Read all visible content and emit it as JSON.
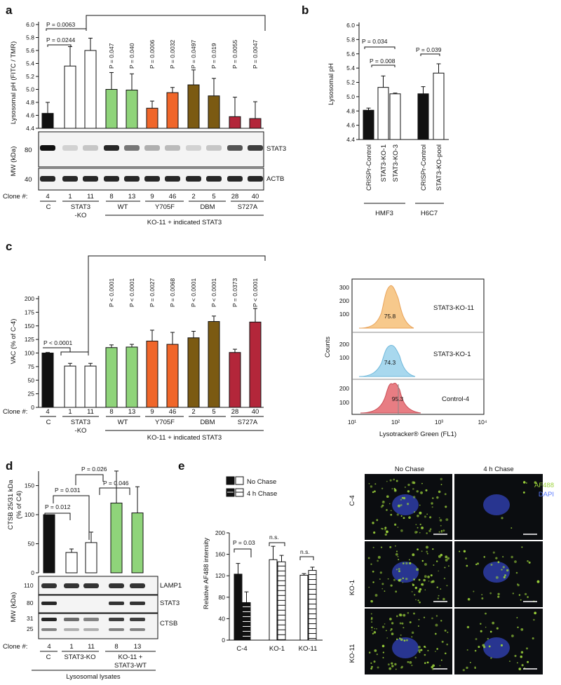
{
  "colors": {
    "black": "#111111",
    "white": "#ffffff",
    "green": "#8fd47a",
    "orange": "#f0662a",
    "brown": "#7b5a12",
    "red": "#b3263a",
    "blue": "#3c4fb4",
    "af488": "#9bd23a",
    "hist_orange": "#f7c98c",
    "hist_blue": "#a8d8ee",
    "hist_red": "#e87d83"
  },
  "panel_labels": {
    "a": "a",
    "b": "b",
    "c": "c",
    "d": "d",
    "e": "e"
  },
  "clone_label": "Clone #:",
  "panel_a": {
    "ylabel": "Lysosomal pH (FITC / TMR)",
    "yticks": [
      "6.0",
      "5.8",
      "5.6",
      "5.4",
      "5.2",
      "5.0",
      "4.8",
      "4.6",
      "4.4"
    ],
    "mw_label": "MW (kDa)",
    "mw_markers": [
      "80",
      "40"
    ],
    "blot_labels": [
      "STAT3",
      "ACTB"
    ],
    "clones": [
      "4",
      "1",
      "11",
      "8",
      "13",
      "9",
      "46",
      "2",
      "5",
      "28",
      "40"
    ],
    "groups": [
      "C",
      "STAT3\n-KO",
      "WT",
      "Y705F",
      "DBM",
      "S727A"
    ],
    "group_c": "C",
    "group_ko_1": "STAT3",
    "group_ko_2": "-KO",
    "group_wt": "WT",
    "group_y705f": "Y705F",
    "group_dbm": "DBM",
    "group_s727a": "S727A",
    "footer": "KO-11 + indicated STAT3",
    "p_top": "P = 0.0063",
    "p_inner": "P = 0.0244",
    "p_values": [
      "P = 0.047",
      "P = 0.040",
      "P = 0.0006",
      "P = 0.0032",
      "P = 0.0497",
      "P = 0.019",
      "P = 0.0055",
      "P = 0.0047"
    ]
  },
  "panel_b": {
    "ylabel": "Lysosomal pH",
    "yticks": [
      "6.0",
      "5.8",
      "5.6",
      "5.4",
      "5.2",
      "5.0",
      "4.8",
      "4.6",
      "4.4"
    ],
    "categories": [
      "CRISPr-Control",
      "STAT3-KO-1",
      "STAT3-KO-3",
      "CRISPr-Control",
      "STAT3-KO-pool"
    ],
    "groups": [
      "HMF3",
      "H6C7"
    ],
    "p_values": [
      "P = 0.034",
      "P = 0.008",
      "P = 0.039"
    ]
  },
  "panel_c": {
    "ylabel": "VAC (% of C-4)",
    "yticks": [
      "200",
      "175",
      "150",
      "125",
      "100",
      "75",
      "50",
      "25",
      "0"
    ],
    "clones": [
      "4",
      "1",
      "11",
      "8",
      "13",
      "9",
      "46",
      "2",
      "5",
      "28",
      "40"
    ],
    "footer": "KO-11 + indicated STAT3",
    "p_ko": "P < 0.0001",
    "p_values": [
      "P < 0.0001",
      "P < 0.0001",
      "P = 0.0027",
      "P = 0.0068",
      "P < 0.0001",
      "P < 0.0001",
      "P = 0.0373",
      "P < 0.0001"
    ],
    "hist": {
      "ylabel": "Counts",
      "xlabel": "Lysotracker® Green (FL1)",
      "xticks": [
        "10¹",
        "10²",
        "10³",
        "10⁴"
      ],
      "tracks": [
        {
          "name": "STAT3-KO-11",
          "value": "75.8",
          "ticks": [
            "300",
            "200",
            "100"
          ]
        },
        {
          "name": "STAT3-KO-1",
          "value": "74.3",
          "ticks": [
            "200",
            "100"
          ]
        },
        {
          "name": "Control-4",
          "value": "95.3",
          "ticks": [
            "200",
            "100"
          ]
        }
      ]
    }
  },
  "panel_d": {
    "ylabel_1": "CTSB 25/31 kDa",
    "ylabel_2": "(% of C4)",
    "yticks": [
      "150",
      "100",
      "50",
      "0"
    ],
    "mw_label": "MW (kDa)",
    "mw_markers": [
      "110",
      "80",
      "31",
      "25"
    ],
    "blot_labels": [
      "LAMP1",
      "STAT3",
      "CTSB"
    ],
    "clones": [
      "4",
      "1",
      "11",
      "8",
      "13"
    ],
    "group_c": "C",
    "group_ko": "STAT3-KO",
    "group_wt_1": "KO-11 +",
    "group_wt_2": "STAT3-WT",
    "footer": "Lysosomal lysates",
    "p_values": [
      "P = 0.012",
      "P = 0.031",
      "P = 0.026",
      "P = 0.046"
    ]
  },
  "panel_e": {
    "ylabel": "Relative AF488 intensity",
    "yticks": [
      "200",
      "160",
      "120",
      "80",
      "40",
      "0"
    ],
    "categories": [
      "C-4",
      "KO-1",
      "KO-11"
    ],
    "legend": [
      "No Chase",
      "4 h Chase"
    ],
    "p_values": [
      "P = 0.03",
      "n.s.",
      "n.s."
    ],
    "col_titles": [
      "No Chase",
      "4 h Chase"
    ],
    "row_labels": [
      "C-4",
      "KO-1",
      "KO-11"
    ],
    "channel_labels": [
      "AF488",
      "DAPI"
    ]
  },
  "chart_data": [
    {
      "type": "bar",
      "title": "",
      "ylabel": "Lysosomal pH (FITC / TMR)",
      "ylim": [
        4.4,
        6.0
      ],
      "categories": [
        "4",
        "1",
        "11",
        "8",
        "13",
        "9",
        "46",
        "2",
        "5",
        "28",
        "40"
      ],
      "values": [
        4.63,
        5.36,
        5.6,
        5.0,
        4.99,
        4.71,
        4.95,
        5.07,
        4.9,
        4.58,
        4.55
      ],
      "errors": [
        0.17,
        0.3,
        0.19,
        0.26,
        0.25,
        0.11,
        0.08,
        0.23,
        0.27,
        0.3,
        0.26
      ]
    },
    {
      "type": "bar",
      "title": "",
      "ylabel": "Lysosomal pH",
      "ylim": [
        4.4,
        6.0
      ],
      "categories": [
        "CRISPr-Control",
        "STAT3-KO-1",
        "STAT3-KO-3",
        "CRISPr-Control",
        "STAT3-KO-pool"
      ],
      "values": [
        4.81,
        5.13,
        5.04,
        5.04,
        5.33
      ],
      "errors": [
        0.03,
        0.16,
        0.01,
        0.1,
        0.13
      ]
    },
    {
      "type": "bar",
      "title": "",
      "ylabel": "VAC (% of C-4)",
      "ylim": [
        0,
        200
      ],
      "categories": [
        "4",
        "1",
        "11",
        "8",
        "13",
        "9",
        "46",
        "2",
        "5",
        "28",
        "40"
      ],
      "values": [
        100,
        76,
        76,
        110,
        111,
        122,
        116,
        128,
        158,
        101,
        157
      ],
      "errors": [
        1,
        5,
        5,
        5,
        5,
        20,
        22,
        12,
        10,
        6,
        25
      ]
    },
    {
      "type": "bar",
      "title": "",
      "ylabel": "CTSB 25/31 kDa (% of C4)",
      "ylim": [
        0,
        170
      ],
      "categories": [
        "4",
        "1",
        "11",
        "8",
        "13"
      ],
      "values": [
        100,
        35,
        52,
        120,
        103
      ],
      "errors": [
        0,
        6,
        18,
        55,
        45
      ]
    },
    {
      "type": "bar",
      "title": "",
      "ylabel": "Relative AF488 intensity",
      "ylim": [
        0,
        200
      ],
      "categories": [
        "C-4",
        "KO-1",
        "KO-11"
      ],
      "series": [
        {
          "name": "No Chase",
          "values": [
            123,
            150,
            121
          ],
          "errors": [
            20,
            25,
            3
          ]
        },
        {
          "name": "4 h Chase",
          "values": [
            70,
            146,
            130
          ],
          "errors": [
            20,
            12,
            6
          ]
        }
      ]
    }
  ]
}
